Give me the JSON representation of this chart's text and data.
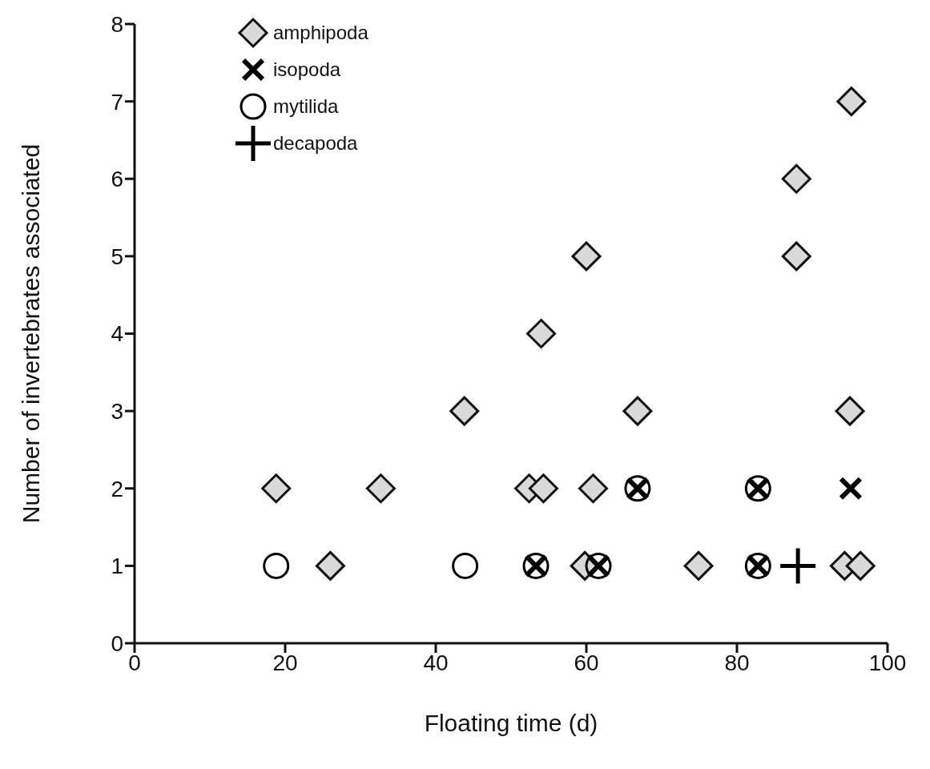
{
  "chart_data": {
    "type": "scatter",
    "xlabel": "Floating time (d)",
    "ylabel": "Number of invertebrates associated",
    "xlim": [
      0,
      100
    ],
    "xticks": [
      0,
      20,
      40,
      60,
      80,
      100
    ],
    "ylim": [
      0,
      8
    ],
    "yticks": [
      0,
      1,
      2,
      3,
      4,
      5,
      6,
      7,
      8
    ],
    "grid": false,
    "legend": "top left",
    "series": [
      {
        "name": "amphipoda",
        "color": "#d9d9d9",
        "marker": "diamond",
        "x": [
          18.8,
          26,
          32.7,
          43.8,
          52.4,
          54.3,
          54,
          60,
          60.9,
          59.8,
          66.8,
          74.9,
          87.9,
          87.9,
          95.2,
          95,
          94.3,
          96.4
        ],
        "values": [
          2,
          1,
          2,
          3,
          2,
          2,
          4,
          5,
          2,
          1,
          3,
          1,
          6,
          5,
          7,
          3,
          1,
          1
        ]
      },
      {
        "name": "isopoda",
        "color": "#000000",
        "marker": "cross",
        "x": [
          53.3,
          61.6,
          66.8,
          82.8,
          82.8,
          95.1
        ],
        "values": [
          1,
          1,
          2,
          2,
          1,
          2
        ]
      },
      {
        "name": "mytilida",
        "color": "#000000",
        "marker": "circle",
        "x": [
          18.8,
          43.9,
          53.3,
          61.6,
          66.8,
          82.8,
          82.8
        ],
        "values": [
          1,
          1,
          1,
          1,
          2,
          2,
          1
        ]
      },
      {
        "name": "decapoda",
        "color": "#000000",
        "marker": "plus",
        "x": [
          88.1
        ],
        "values": [
          1
        ]
      }
    ]
  }
}
